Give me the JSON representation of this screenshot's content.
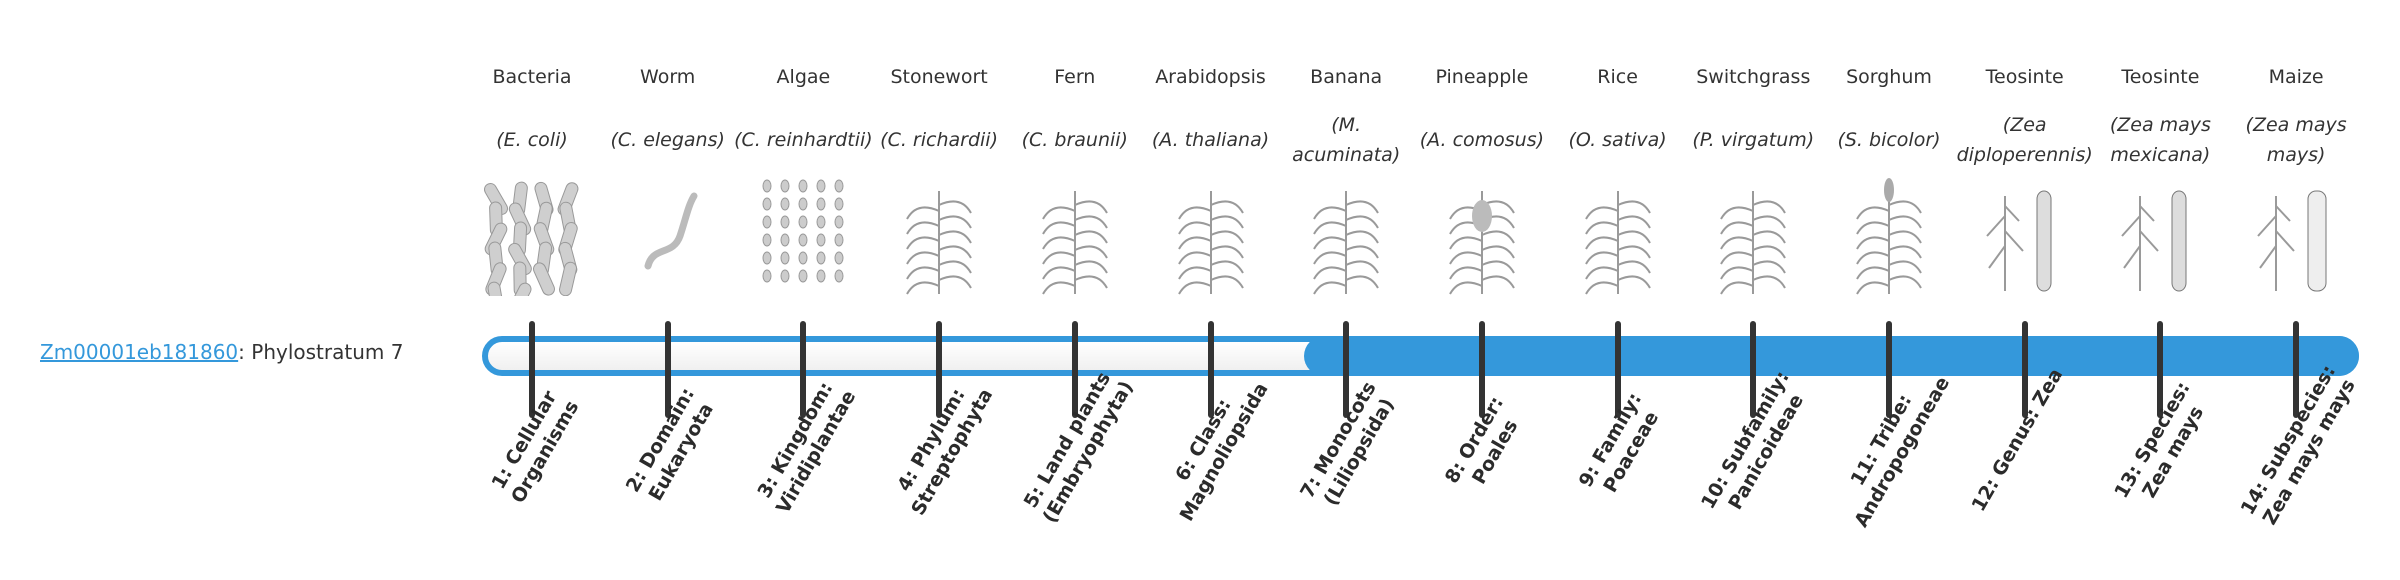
{
  "gene": {
    "id": "Zm00001eb181860",
    "suffix": ": Phylostratum 7",
    "phylostratum": 7,
    "total_strata": 14
  },
  "colors": {
    "accent": "#3498db",
    "tick": "#333333"
  },
  "organisms": [
    {
      "name": "Bacteria",
      "species": "(E. coli)",
      "icon": "bacteria-icon"
    },
    {
      "name": "Worm",
      "species": "(C. elegans)",
      "icon": "worm-icon"
    },
    {
      "name": "Algae",
      "species": "(C. reinhardtii)",
      "icon": "algae-icon"
    },
    {
      "name": "Stonewort",
      "species": "(C. richardii)",
      "icon": "stonewort-icon"
    },
    {
      "name": "Fern",
      "species": "(C. braunii)",
      "icon": "fern-icon"
    },
    {
      "name": "Arabidopsis",
      "species": "(A. thaliana)",
      "icon": "arabidopsis-icon"
    },
    {
      "name": "Banana",
      "species": "(M. acuminata)",
      "icon": "banana-plant-icon"
    },
    {
      "name": "Pineapple",
      "species": "(A. comosus)",
      "icon": "pineapple-icon"
    },
    {
      "name": "Rice",
      "species": "(O. sativa)",
      "icon": "rice-plant-icon"
    },
    {
      "name": "Switchgrass",
      "species": "(P. virgatum)",
      "icon": "switchgrass-icon"
    },
    {
      "name": "Sorghum",
      "species": "(S. bicolor)",
      "icon": "sorghum-icon"
    },
    {
      "name": "Teosinte",
      "species": "(Zea diploperennis)",
      "icon": "teosinte-icon"
    },
    {
      "name": "Teosinte",
      "species": "(Zea mays mexicana)",
      "icon": "teosinte-icon"
    },
    {
      "name": "Maize",
      "species": "(Zea mays mays)",
      "icon": "maize-icon"
    }
  ],
  "strata": [
    "1: Cellular Organisms",
    "2: Domain: Eukaryota",
    "3: Kingdom: Viridiplantae",
    "4: Phylum: Streptophyta",
    "5: Land plants (Embryophyta)",
    "6: Class: Magnoliopsida",
    "7: Monocots (Liliopsida)",
    "8: Order: Poales",
    "9: Family: Poaceae",
    "10: Subfamily: Panicoideae",
    "11: Tribe: Andropogoneae",
    "12: Genus: Zea",
    "13: Species: Zea mays",
    "14: Subspecies: Zea mays mays"
  ]
}
